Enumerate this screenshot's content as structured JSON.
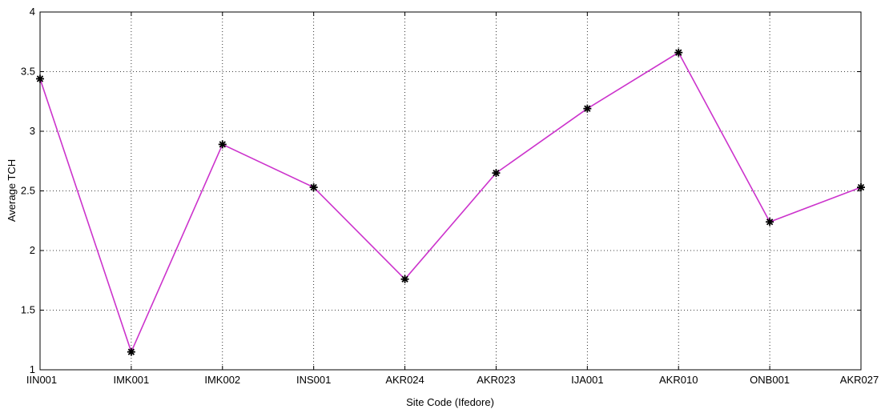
{
  "chart_data": {
    "type": "line",
    "title": "",
    "xlabel": "Site Code (Ifedore)",
    "ylabel": "Average TCH",
    "categories": [
      "IIN001",
      "IMK001",
      "IMK002",
      "INS001",
      "AKR024",
      "AKR023",
      "IJA001",
      "AKR010",
      "ONB001",
      "AKR027"
    ],
    "series": [
      {
        "values": [
          3.44,
          1.15,
          2.89,
          2.53,
          1.76,
          2.65,
          3.19,
          3.66,
          2.24,
          2.53
        ],
        "color": "#cc33cc",
        "marker": "asterisk",
        "marker_color": "#000000"
      }
    ],
    "ylim": [
      1,
      4
    ],
    "yticks": [
      1,
      1.5,
      2,
      2.5,
      3,
      3.5,
      4
    ],
    "ytick_labels": [
      "1",
      "1.5",
      "2",
      "2.5",
      "3",
      "3.5",
      "4"
    ],
    "grid": true,
    "grid_style": "dotted",
    "legend": "none"
  }
}
